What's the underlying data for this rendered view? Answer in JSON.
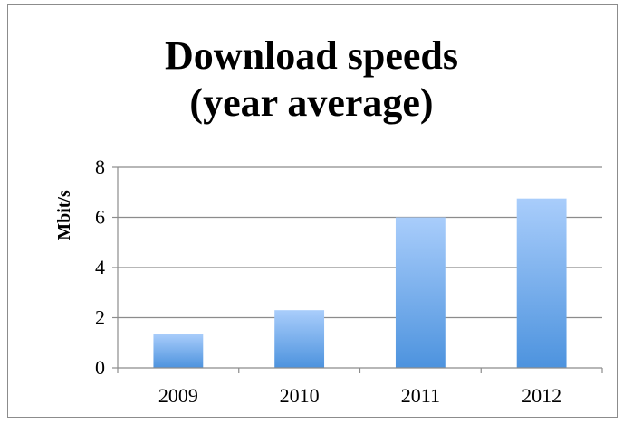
{
  "chart_data": {
    "type": "bar",
    "title_lines": [
      "Download speeds",
      "(year average)"
    ],
    "xlabel": "",
    "ylabel": "Mbit/s",
    "categories": [
      "2009",
      "2010",
      "2011",
      "2012"
    ],
    "values": [
      1.35,
      2.3,
      6.0,
      6.75
    ],
    "ylim": [
      0,
      8
    ],
    "yticks": [
      0,
      2,
      4,
      6,
      8
    ],
    "grid": true,
    "legend": "none",
    "colors": {
      "bar_top": "#a9cdfb",
      "bar_bottom": "#4d93de",
      "grid": "#8c8c8c",
      "axis": "#8c8c8c"
    }
  }
}
